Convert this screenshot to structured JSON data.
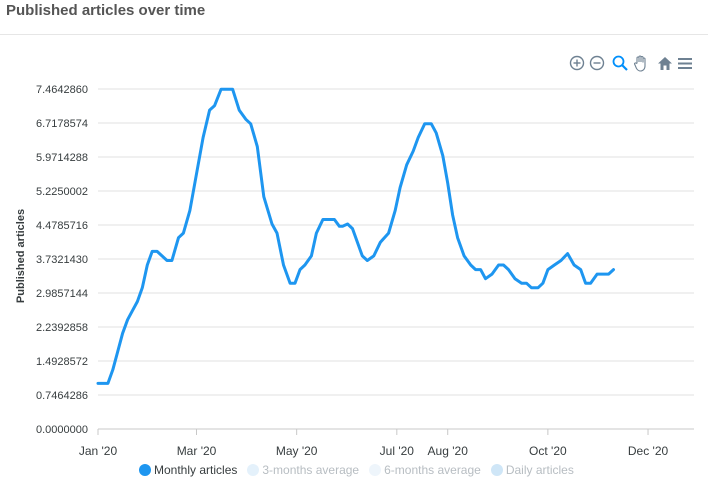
{
  "title": "Published articles over time",
  "toolbar": {
    "icons": [
      "zoom-in-icon",
      "zoom-out-icon",
      "selection-zoom-icon",
      "pan-hand-icon",
      "home-reset-icon",
      "menu-icon"
    ]
  },
  "colors": {
    "series": "#1e96f0",
    "grid": "#e0e0e0",
    "legend_inactive_1": "#e4f1fb",
    "legend_inactive_2": "#eef5fb",
    "legend_inactive_3": "#cfe6f7"
  },
  "legend": [
    {
      "label": "Monthly articles",
      "active": true
    },
    {
      "label": "3-months average",
      "active": false
    },
    {
      "label": "6-months average",
      "active": false
    },
    {
      "label": "Daily articles",
      "active": false
    }
  ],
  "chart_data": {
    "type": "line",
    "ylabel": "Published articles",
    "xlabel": "",
    "ylim": [
      0,
      7.464286
    ],
    "y_ticks": [
      "0.0000000",
      "0.7464286",
      "1.4928572",
      "2.2392858",
      "2.9857144",
      "3.7321430",
      "4.4785716",
      "5.2250002",
      "5.9714288",
      "6.7178574",
      "7.4642860"
    ],
    "x_ticks": [
      {
        "label": "Jan '20",
        "date": "2020-01-01"
      },
      {
        "label": "Mar '20",
        "date": "2020-03-01"
      },
      {
        "label": "May '20",
        "date": "2020-05-01"
      },
      {
        "label": "Jul '20",
        "date": "2020-07-01"
      },
      {
        "label": "Aug '20",
        "date": "2020-08-01"
      },
      {
        "label": "Oct '20",
        "date": "2020-10-01"
      },
      {
        "label": "Dec '20",
        "date": "2020-12-01"
      }
    ],
    "x_range": [
      "2020-01-01",
      "2020-12-29"
    ],
    "grid": true,
    "legend_position": "bottom",
    "series": [
      {
        "name": "Monthly articles",
        "points": [
          [
            "2020-01-01",
            1.0
          ],
          [
            "2020-01-07",
            1.0
          ],
          [
            "2020-01-10",
            1.3
          ],
          [
            "2020-01-13",
            1.7
          ],
          [
            "2020-01-16",
            2.1
          ],
          [
            "2020-01-19",
            2.4
          ],
          [
            "2020-01-22",
            2.6
          ],
          [
            "2020-01-25",
            2.8
          ],
          [
            "2020-01-28",
            3.1
          ],
          [
            "2020-01-31",
            3.6
          ],
          [
            "2020-02-03",
            3.9
          ],
          [
            "2020-02-06",
            3.9
          ],
          [
            "2020-02-09",
            3.8
          ],
          [
            "2020-02-12",
            3.7
          ],
          [
            "2020-02-15",
            3.7
          ],
          [
            "2020-02-19",
            4.2
          ],
          [
            "2020-02-22",
            4.3
          ],
          [
            "2020-02-26",
            4.8
          ],
          [
            "2020-03-01",
            5.6
          ],
          [
            "2020-03-05",
            6.4
          ],
          [
            "2020-03-09",
            7.0
          ],
          [
            "2020-03-12",
            7.1
          ],
          [
            "2020-03-16",
            7.46
          ],
          [
            "2020-03-23",
            7.46
          ],
          [
            "2020-03-27",
            7.0
          ],
          [
            "2020-03-31",
            6.8
          ],
          [
            "2020-04-03",
            6.7
          ],
          [
            "2020-04-07",
            6.2
          ],
          [
            "2020-04-11",
            5.1
          ],
          [
            "2020-04-16",
            4.5
          ],
          [
            "2020-04-19",
            4.3
          ],
          [
            "2020-04-23",
            3.6
          ],
          [
            "2020-04-27",
            3.2
          ],
          [
            "2020-04-30",
            3.2
          ],
          [
            "2020-05-03",
            3.5
          ],
          [
            "2020-05-06",
            3.6
          ],
          [
            "2020-05-10",
            3.8
          ],
          [
            "2020-05-13",
            4.3
          ],
          [
            "2020-05-17",
            4.6
          ],
          [
            "2020-05-24",
            4.6
          ],
          [
            "2020-05-27",
            4.45
          ],
          [
            "2020-05-29",
            4.45
          ],
          [
            "2020-06-01",
            4.5
          ],
          [
            "2020-06-04",
            4.4
          ],
          [
            "2020-06-07",
            4.1
          ],
          [
            "2020-06-10",
            3.8
          ],
          [
            "2020-06-13",
            3.7
          ],
          [
            "2020-06-17",
            3.8
          ],
          [
            "2020-06-21",
            4.1
          ],
          [
            "2020-06-26",
            4.3
          ],
          [
            "2020-06-30",
            4.8
          ],
          [
            "2020-07-03",
            5.3
          ],
          [
            "2020-07-07",
            5.8
          ],
          [
            "2020-07-11",
            6.1
          ],
          [
            "2020-07-14",
            6.4
          ],
          [
            "2020-07-18",
            6.7
          ],
          [
            "2020-07-22",
            6.7
          ],
          [
            "2020-07-25",
            6.5
          ],
          [
            "2020-07-29",
            6.0
          ],
          [
            "2020-08-01",
            5.4
          ],
          [
            "2020-08-04",
            4.7
          ],
          [
            "2020-08-07",
            4.2
          ],
          [
            "2020-08-11",
            3.8
          ],
          [
            "2020-08-15",
            3.6
          ],
          [
            "2020-08-18",
            3.5
          ],
          [
            "2020-08-21",
            3.5
          ],
          [
            "2020-08-24",
            3.3
          ],
          [
            "2020-08-28",
            3.4
          ],
          [
            "2020-09-01",
            3.6
          ],
          [
            "2020-09-04",
            3.6
          ],
          [
            "2020-09-07",
            3.5
          ],
          [
            "2020-09-11",
            3.3
          ],
          [
            "2020-09-15",
            3.2
          ],
          [
            "2020-09-18",
            3.2
          ],
          [
            "2020-09-21",
            3.1
          ],
          [
            "2020-09-25",
            3.1
          ],
          [
            "2020-09-28",
            3.2
          ],
          [
            "2020-10-01",
            3.5
          ],
          [
            "2020-10-05",
            3.6
          ],
          [
            "2020-10-09",
            3.7
          ],
          [
            "2020-10-13",
            3.85
          ],
          [
            "2020-10-17",
            3.6
          ],
          [
            "2020-10-21",
            3.5
          ],
          [
            "2020-10-24",
            3.2
          ],
          [
            "2020-10-27",
            3.2
          ],
          [
            "2020-10-31",
            3.4
          ],
          [
            "2020-11-03",
            3.4
          ],
          [
            "2020-11-07",
            3.4
          ],
          [
            "2020-11-10",
            3.5
          ]
        ]
      }
    ]
  }
}
